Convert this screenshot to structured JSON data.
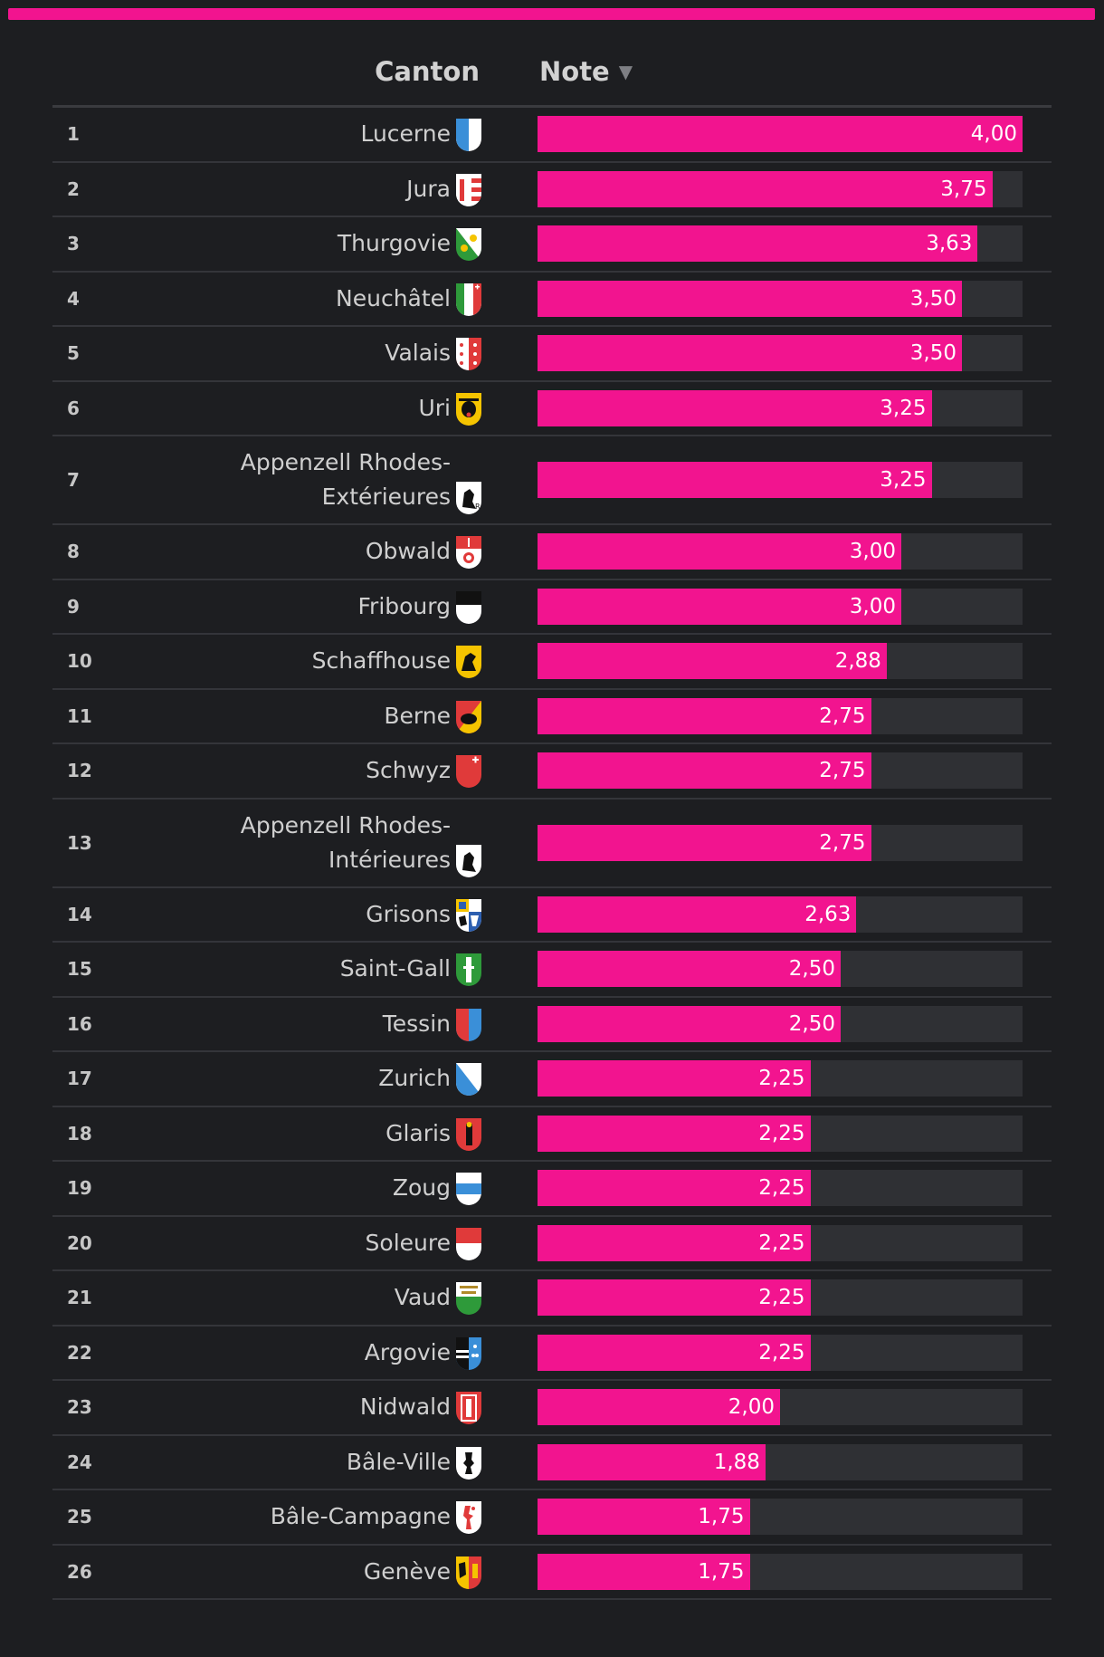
{
  "table": {
    "header": {
      "canton": "Canton",
      "note": "Note",
      "sort_arrow": "▼"
    },
    "colors": {
      "accent": "#f2148f",
      "track": "#2f3034",
      "background": "#1d1e21"
    }
  },
  "chart_data": {
    "type": "bar",
    "orientation": "horizontal",
    "title": "",
    "xlabel": "Note",
    "ylabel": "Canton",
    "xlim": [
      0,
      4
    ],
    "rows": [
      {
        "rank": "1",
        "canton": "Lucerne",
        "value": 4.0,
        "label": "4,00",
        "flag": "lucerne-flag-icon"
      },
      {
        "rank": "2",
        "canton": "Jura",
        "value": 3.75,
        "label": "3,75",
        "flag": "jura-flag-icon"
      },
      {
        "rank": "3",
        "canton": "Thurgovie",
        "value": 3.63,
        "label": "3,63",
        "flag": "thurgovie-flag-icon"
      },
      {
        "rank": "4",
        "canton": "Neuchâtel",
        "value": 3.5,
        "label": "3,50",
        "flag": "neuchatel-flag-icon"
      },
      {
        "rank": "5",
        "canton": "Valais",
        "value": 3.5,
        "label": "3,50",
        "flag": "valais-flag-icon"
      },
      {
        "rank": "6",
        "canton": "Uri",
        "value": 3.25,
        "label": "3,25",
        "flag": "uri-flag-icon"
      },
      {
        "rank": "7",
        "canton": "Appenzell Rhodes-Extérieures",
        "value": 3.25,
        "label": "3,25",
        "flag": "appenzell-ar-flag-icon"
      },
      {
        "rank": "8",
        "canton": "Obwald",
        "value": 3.0,
        "label": "3,00",
        "flag": "obwald-flag-icon"
      },
      {
        "rank": "9",
        "canton": "Fribourg",
        "value": 3.0,
        "label": "3,00",
        "flag": "fribourg-flag-icon"
      },
      {
        "rank": "10",
        "canton": "Schaffhouse",
        "value": 2.88,
        "label": "2,88",
        "flag": "schaffhouse-flag-icon"
      },
      {
        "rank": "11",
        "canton": "Berne",
        "value": 2.75,
        "label": "2,75",
        "flag": "berne-flag-icon"
      },
      {
        "rank": "12",
        "canton": "Schwyz",
        "value": 2.75,
        "label": "2,75",
        "flag": "schwyz-flag-icon"
      },
      {
        "rank": "13",
        "canton": "Appenzell Rhodes-Intérieures",
        "value": 2.75,
        "label": "2,75",
        "flag": "appenzell-ai-flag-icon"
      },
      {
        "rank": "14",
        "canton": "Grisons",
        "value": 2.63,
        "label": "2,63",
        "flag": "grisons-flag-icon"
      },
      {
        "rank": "15",
        "canton": "Saint-Gall",
        "value": 2.5,
        "label": "2,50",
        "flag": "saint-gall-flag-icon"
      },
      {
        "rank": "16",
        "canton": "Tessin",
        "value": 2.5,
        "label": "2,50",
        "flag": "tessin-flag-icon"
      },
      {
        "rank": "17",
        "canton": "Zurich",
        "value": 2.25,
        "label": "2,25",
        "flag": "zurich-flag-icon"
      },
      {
        "rank": "18",
        "canton": "Glaris",
        "value": 2.25,
        "label": "2,25",
        "flag": "glaris-flag-icon"
      },
      {
        "rank": "19",
        "canton": "Zoug",
        "value": 2.25,
        "label": "2,25",
        "flag": "zoug-flag-icon"
      },
      {
        "rank": "20",
        "canton": "Soleure",
        "value": 2.25,
        "label": "2,25",
        "flag": "soleure-flag-icon"
      },
      {
        "rank": "21",
        "canton": "Vaud",
        "value": 2.25,
        "label": "2,25",
        "flag": "vaud-flag-icon"
      },
      {
        "rank": "22",
        "canton": "Argovie",
        "value": 2.25,
        "label": "2,25",
        "flag": "argovie-flag-icon"
      },
      {
        "rank": "23",
        "canton": "Nidwald",
        "value": 2.0,
        "label": "2,00",
        "flag": "nidwald-flag-icon"
      },
      {
        "rank": "24",
        "canton": "Bâle-Ville",
        "value": 1.88,
        "label": "1,88",
        "flag": "bale-ville-flag-icon"
      },
      {
        "rank": "25",
        "canton": "Bâle-Campagne",
        "value": 1.75,
        "label": "1,75",
        "flag": "bale-campagne-flag-icon"
      },
      {
        "rank": "26",
        "canton": "Genève",
        "value": 1.75,
        "label": "1,75",
        "flag": "geneve-flag-icon"
      }
    ]
  }
}
